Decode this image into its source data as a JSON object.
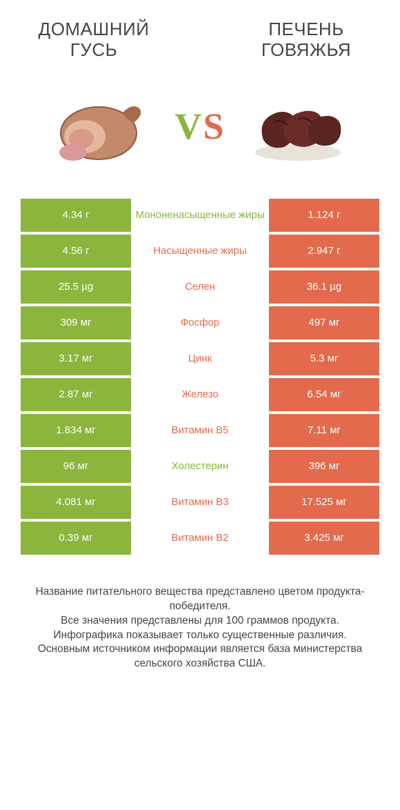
{
  "colors": {
    "green": "#8bb53d",
    "orange": "#e36a4d",
    "text": "#444444"
  },
  "header": {
    "left_title": "ДОМАШНИЙ\nГУСЬ",
    "right_title": "ПЕЧЕНЬ\nГОВЯЖЬЯ",
    "vs": "VS",
    "vs_color_left": "#8bb53d",
    "vs_color_right": "#e36a4d"
  },
  "rows": [
    {
      "left": "4.34 г",
      "label": "Мононенасыщенные жиры",
      "right": "1.124 г",
      "winner": "green"
    },
    {
      "left": "4.56 г",
      "label": "Насыщенные жиры",
      "right": "2.947 г",
      "winner": "orange"
    },
    {
      "left": "25.5 µg",
      "label": "Селен",
      "right": "36.1 µg",
      "winner": "orange"
    },
    {
      "left": "309 мг",
      "label": "Фосфор",
      "right": "497 мг",
      "winner": "orange"
    },
    {
      "left": "3.17 мг",
      "label": "Цинк",
      "right": "5.3 мг",
      "winner": "orange"
    },
    {
      "left": "2.87 мг",
      "label": "Железо",
      "right": "6.54 мг",
      "winner": "orange"
    },
    {
      "left": "1.834 мг",
      "label": "Витамин B5",
      "right": "7.11 мг",
      "winner": "orange"
    },
    {
      "left": "96 мг",
      "label": "Холестерин",
      "right": "396 мг",
      "winner": "green"
    },
    {
      "left": "4.081 мг",
      "label": "Витамин B3",
      "right": "17.525 мг",
      "winner": "orange"
    },
    {
      "left": "0.39 мг",
      "label": "Витамин B2",
      "right": "3.425 мг",
      "winner": "orange"
    }
  ],
  "footer": {
    "line1": "Название питательного вещества представлено цветом продукта-победителя.",
    "line2": "Все значения представлены для 100 граммов продукта.",
    "line3": "Инфографика показывает только существенные различия.",
    "line4": "Основным источником информации является база министерства сельского хозяйства США."
  }
}
